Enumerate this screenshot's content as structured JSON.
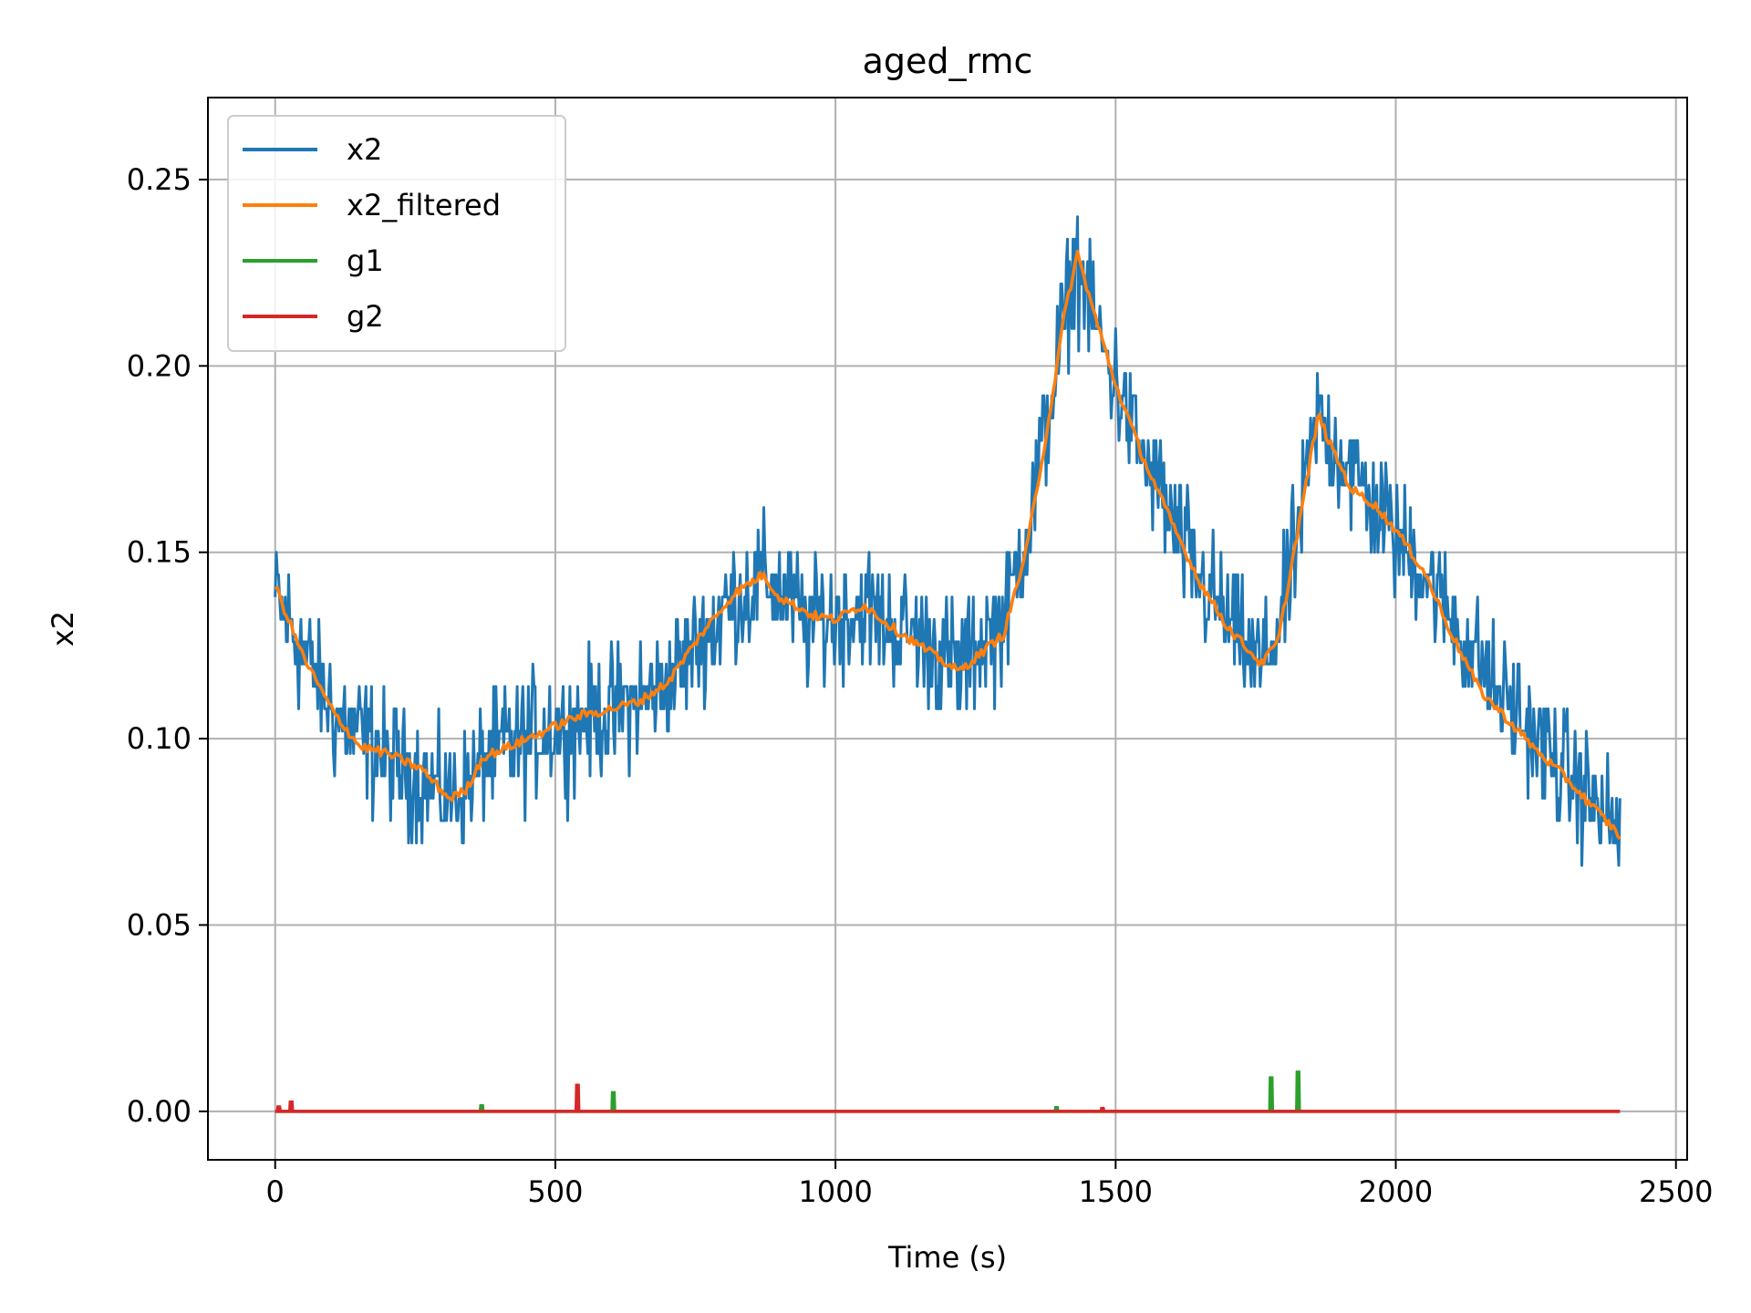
{
  "chart_data": {
    "type": "line",
    "title": "aged_rmc",
    "xlabel": "Time (s)",
    "ylabel": "x2",
    "xlim": [
      -120,
      2520
    ],
    "ylim": [
      -0.013,
      0.272
    ],
    "x_ticks": [
      0,
      500,
      1000,
      1500,
      2000,
      2500
    ],
    "x_tick_labels": [
      "0",
      "500",
      "1000",
      "1500",
      "2000",
      "2500"
    ],
    "y_ticks": [
      0.0,
      0.05,
      0.1,
      0.15,
      0.2,
      0.25
    ],
    "y_tick_labels": [
      "0.00",
      "0.05",
      "0.10",
      "0.15",
      "0.20",
      "0.25"
    ],
    "grid": true,
    "legend_position": "top-left",
    "series": [
      {
        "name": "x2",
        "color": "#1f77b4",
        "noise": 0.022,
        "x": [
          0,
          100,
          200,
          310,
          400,
          500,
          600,
          700,
          800,
          870,
          950,
          1050,
          1150,
          1220,
          1300,
          1350,
          1400,
          1430,
          1460,
          1550,
          1650,
          1760,
          1800,
          1860,
          1950,
          2050,
          2150,
          2250,
          2400
        ],
        "y": [
          0.138,
          0.108,
          0.094,
          0.084,
          0.097,
          0.103,
          0.107,
          0.115,
          0.134,
          0.144,
          0.131,
          0.135,
          0.126,
          0.119,
          0.132,
          0.16,
          0.205,
          0.229,
          0.212,
          0.175,
          0.142,
          0.119,
          0.135,
          0.186,
          0.165,
          0.145,
          0.12,
          0.1,
          0.075
        ]
      },
      {
        "name": "x2_filtered",
        "color": "#ff7f0e",
        "x": [
          0,
          50,
          100,
          150,
          200,
          260,
          310,
          340,
          370,
          420,
          480,
          540,
          600,
          650,
          700,
          760,
          820,
          870,
          900,
          960,
          1000,
          1050,
          1100,
          1150,
          1200,
          1220,
          1260,
          1300,
          1340,
          1380,
          1410,
          1432,
          1460,
          1500,
          1550,
          1600,
          1650,
          1700,
          1760,
          1790,
          1830,
          1862,
          1880,
          1920,
          1960,
          2000,
          2050,
          2100,
          2150,
          2200,
          2250,
          2300,
          2350,
          2400
        ],
        "y": [
          0.141,
          0.122,
          0.108,
          0.098,
          0.096,
          0.092,
          0.084,
          0.086,
          0.095,
          0.098,
          0.102,
          0.106,
          0.108,
          0.11,
          0.115,
          0.128,
          0.139,
          0.144,
          0.138,
          0.133,
          0.132,
          0.136,
          0.13,
          0.125,
          0.12,
          0.118,
          0.123,
          0.128,
          0.15,
          0.185,
          0.215,
          0.23,
          0.215,
          0.195,
          0.175,
          0.158,
          0.142,
          0.13,
          0.12,
          0.126,
          0.16,
          0.187,
          0.18,
          0.167,
          0.163,
          0.156,
          0.145,
          0.128,
          0.113,
          0.105,
          0.097,
          0.09,
          0.082,
          0.074
        ]
      },
      {
        "name": "g1",
        "color": "#2ca02c",
        "x_range": [
          0,
          2400
        ],
        "base": 0.0,
        "spikes": [
          {
            "x": 367,
            "y": 0.0015
          },
          {
            "x": 602,
            "y": 0.005
          },
          {
            "x": 1393,
            "y": 0.001
          },
          {
            "x": 1776,
            "y": 0.009
          },
          {
            "x": 1824,
            "y": 0.0105
          }
        ]
      },
      {
        "name": "g2",
        "color": "#d62728",
        "x_range": [
          0,
          2400
        ],
        "base": 0.0,
        "spikes": [
          {
            "x": 5,
            "y": 0.0012
          },
          {
            "x": 27,
            "y": 0.0025
          },
          {
            "x": 538,
            "y": 0.007
          },
          {
            "x": 1475,
            "y": 0.0008
          }
        ]
      }
    ]
  }
}
